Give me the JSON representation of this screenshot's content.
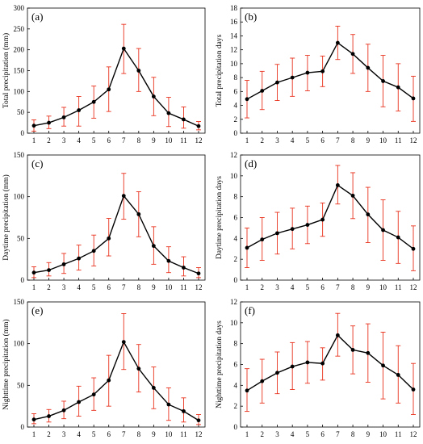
{
  "chart_data": [
    {
      "panel_label": "(a)",
      "type": "line",
      "ylabel": "Total precipitation (mm)",
      "x": [
        1,
        2,
        3,
        4,
        5,
        6,
        7,
        8,
        9,
        10,
        11,
        12
      ],
      "y": [
        18,
        25,
        38,
        55,
        75,
        105,
        203,
        150,
        88,
        48,
        33,
        17
      ],
      "err_low": [
        5,
        11,
        17,
        17,
        36,
        52,
        143,
        100,
        42,
        16,
        12,
        8
      ],
      "err_high": [
        32,
        41,
        62,
        88,
        113,
        159,
        261,
        203,
        134,
        86,
        63,
        28
      ],
      "ylim": [
        0,
        300
      ],
      "yticks": [
        0,
        50,
        100,
        150,
        200,
        250,
        300
      ],
      "xticks": [
        1,
        2,
        3,
        4,
        5,
        6,
        7,
        8,
        9,
        10,
        11,
        12
      ]
    },
    {
      "panel_label": "(b)",
      "type": "line",
      "ylabel": "Total precipitation days",
      "x": [
        1,
        2,
        3,
        4,
        5,
        6,
        7,
        8,
        9,
        10,
        11,
        12
      ],
      "y": [
        4.9,
        6.1,
        7.3,
        8.0,
        8.7,
        8.9,
        13.0,
        11.4,
        9.4,
        7.5,
        6.6,
        5.0
      ],
      "err_low": [
        2.2,
        3.4,
        4.7,
        5.3,
        6.1,
        6.7,
        10.6,
        8.6,
        6.0,
        3.8,
        3.2,
        1.7
      ],
      "err_high": [
        7.6,
        8.9,
        9.9,
        10.8,
        11.2,
        11.1,
        15.4,
        14.2,
        12.8,
        11.2,
        10.0,
        8.2
      ],
      "ylim": [
        0,
        18
      ],
      "yticks": [
        0,
        2,
        4,
        6,
        8,
        10,
        12,
        14,
        16,
        18
      ],
      "xticks": [
        1,
        2,
        3,
        4,
        5,
        6,
        7,
        8,
        9,
        10,
        11,
        12
      ]
    },
    {
      "panel_label": "(c)",
      "type": "line",
      "ylabel": "Daytime precipitation (mm)",
      "x": [
        1,
        2,
        3,
        4,
        5,
        6,
        7,
        8,
        9,
        10,
        11,
        12
      ],
      "y": [
        9,
        12,
        19,
        26,
        35,
        50,
        101,
        79,
        41,
        23,
        15,
        8
      ],
      "err_low": [
        3,
        5,
        8,
        12,
        17,
        29,
        73,
        52,
        19,
        9,
        5,
        3
      ],
      "err_high": [
        16,
        21,
        32,
        42,
        54,
        74,
        128,
        106,
        64,
        40,
        28,
        15
      ],
      "ylim": [
        0,
        150
      ],
      "yticks": [
        0,
        50,
        100,
        150
      ],
      "xticks": [
        1,
        2,
        3,
        4,
        5,
        6,
        7,
        8,
        9,
        10,
        11,
        12
      ]
    },
    {
      "panel_label": "(d)",
      "type": "line",
      "ylabel": "Daytime precipitation days",
      "x": [
        1,
        2,
        3,
        4,
        5,
        6,
        7,
        8,
        9,
        10,
        11,
        12
      ],
      "y": [
        3.1,
        3.9,
        4.5,
        4.9,
        5.3,
        5.8,
        9.1,
        8.1,
        6.3,
        4.8,
        4.1,
        3.0
      ],
      "err_low": [
        1.2,
        1.9,
        2.5,
        3.0,
        3.5,
        4.2,
        7.3,
        5.9,
        3.6,
        1.9,
        1.6,
        0.9
      ],
      "err_high": [
        5.0,
        6.0,
        6.5,
        6.9,
        7.1,
        7.4,
        11.0,
        10.3,
        8.9,
        7.7,
        6.6,
        5.2
      ],
      "ylim": [
        0,
        12
      ],
      "yticks": [
        0,
        2,
        4,
        6,
        8,
        10,
        12
      ],
      "xticks": [
        1,
        2,
        3,
        4,
        5,
        6,
        7,
        8,
        9,
        10,
        11,
        12
      ]
    },
    {
      "panel_label": "(e)",
      "type": "line",
      "ylabel": "Nighttime precipitation (mm)",
      "x": [
        1,
        2,
        3,
        4,
        5,
        6,
        7,
        8,
        9,
        10,
        11,
        12
      ],
      "y": [
        9,
        13,
        20,
        30,
        39,
        56,
        102,
        70,
        47,
        27,
        19,
        8
      ],
      "err_low": [
        4,
        6,
        10,
        13,
        20,
        25,
        69,
        42,
        22,
        8,
        6,
        3
      ],
      "err_high": [
        16,
        21,
        31,
        49,
        59,
        86,
        136,
        99,
        72,
        47,
        35,
        15
      ],
      "ylim": [
        0,
        150
      ],
      "yticks": [
        0,
        50,
        100,
        150
      ],
      "xticks": [
        1,
        2,
        3,
        4,
        5,
        6,
        7,
        8,
        9,
        10,
        11,
        12
      ]
    },
    {
      "panel_label": "(f)",
      "type": "line",
      "ylabel": "Nighttime precipitation days",
      "x": [
        1,
        2,
        3,
        4,
        5,
        6,
        7,
        8,
        9,
        10,
        11,
        12
      ],
      "y": [
        3.5,
        4.4,
        5.2,
        5.8,
        6.2,
        6.1,
        8.8,
        7.4,
        7.1,
        5.9,
        5.0,
        3.6
      ],
      "err_low": [
        1.5,
        2.3,
        3.2,
        3.6,
        4.2,
        4.5,
        6.8,
        5.1,
        4.3,
        2.7,
        2.3,
        1.2
      ],
      "err_high": [
        5.6,
        6.5,
        7.2,
        8.1,
        8.2,
        7.6,
        10.9,
        9.7,
        9.9,
        9.1,
        7.8,
        6.1
      ],
      "ylim": [
        0,
        12
      ],
      "yticks": [
        0,
        2,
        4,
        6,
        8,
        10,
        12
      ],
      "xticks": [
        1,
        2,
        3,
        4,
        5,
        6,
        7,
        8,
        9,
        10,
        11,
        12
      ]
    }
  ],
  "colors": {
    "line": "#000000",
    "marker": "#000000",
    "error_bar": "#e8301c",
    "axis": "#000000"
  }
}
